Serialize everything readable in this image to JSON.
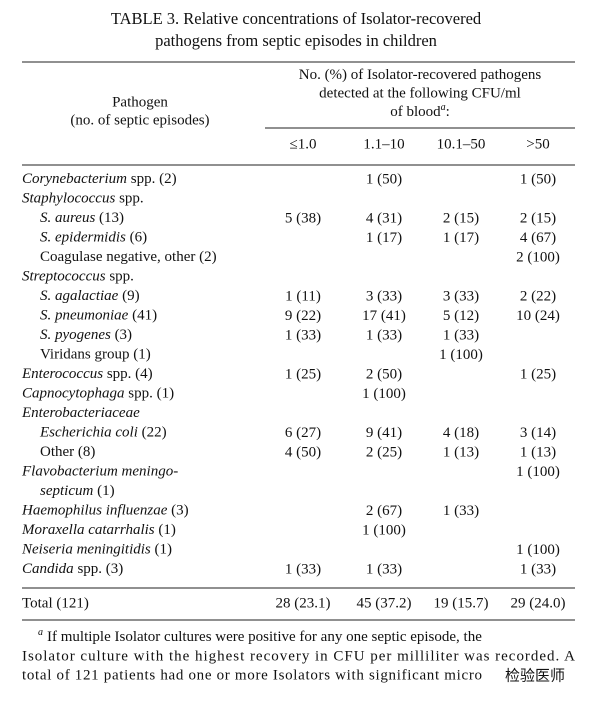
{
  "title": [
    "TABLE 3. Relative concentrations of Isolator-recovered",
    "pathogens from septic episodes in children"
  ],
  "header": {
    "stub": [
      "Pathogen",
      "(no. of septic episodes)"
    ],
    "spanner": [
      [
        {
          "text": "No. (%) of Isolator-recovered pathogens"
        }
      ],
      [
        {
          "text": "detected at the following CFU/ml"
        }
      ],
      [
        {
          "text": "of blood"
        },
        {
          "text": "a",
          "italic": true,
          "sup": true
        },
        {
          "text": ":"
        }
      ]
    ],
    "columns": [
      "≤1.0",
      "1.1–10",
      "10.1–50",
      ">50"
    ]
  },
  "rows": [
    {
      "label": [
        [
          {
            "text": "Corynebacterium",
            "italic": true
          },
          {
            "text": " spp. (2)"
          }
        ]
      ],
      "values": [
        null,
        "1 (50)",
        null,
        "1 (50)"
      ]
    },
    {
      "label": [
        [
          {
            "text": "Staphylococcus",
            "italic": true
          },
          {
            "text": " spp."
          }
        ]
      ]
    },
    {
      "level": 1,
      "label": [
        [
          {
            "text": "S. aureus",
            "italic": true
          },
          {
            "text": " (13)"
          }
        ]
      ],
      "values": [
        "5 (38)",
        "4 (31)",
        "2 (15)",
        "2 (15)"
      ]
    },
    {
      "level": 1,
      "label": [
        [
          {
            "text": "S. epidermidis",
            "italic": true
          },
          {
            "text": " (6)"
          }
        ]
      ],
      "values": [
        null,
        "1 (17)",
        "1 (17)",
        "4 (67)"
      ]
    },
    {
      "level": 1,
      "label": [
        [
          {
            "text": "Coagulase negative, other (2)"
          }
        ]
      ],
      "values": [
        null,
        null,
        null,
        "2 (100)"
      ]
    },
    {
      "label": [
        [
          {
            "text": "Streptococcus",
            "italic": true
          },
          {
            "text": " spp."
          }
        ]
      ]
    },
    {
      "level": 1,
      "label": [
        [
          {
            "text": "S. agalactiae",
            "italic": true
          },
          {
            "text": " (9)"
          }
        ]
      ],
      "values": [
        "1 (11)",
        "3 (33)",
        "3 (33)",
        "2 (22)"
      ]
    },
    {
      "level": 1,
      "label": [
        [
          {
            "text": "S. pneumoniae",
            "italic": true
          },
          {
            "text": " (41)"
          }
        ]
      ],
      "values": [
        "9 (22)",
        "17 (41)",
        "5 (12)",
        "10 (24)"
      ]
    },
    {
      "level": 1,
      "label": [
        [
          {
            "text": "S. pyogenes",
            "italic": true
          },
          {
            "text": " (3)"
          }
        ]
      ],
      "values": [
        "1 (33)",
        "1 (33)",
        "1 (33)",
        null
      ]
    },
    {
      "level": 1,
      "label": [
        [
          {
            "text": "Viridans group (1)"
          }
        ]
      ],
      "values": [
        null,
        null,
        "1 (100)",
        null
      ]
    },
    {
      "label": [
        [
          {
            "text": "Enterococcus",
            "italic": true
          },
          {
            "text": " spp. (4)"
          }
        ]
      ],
      "values": [
        "1 (25)",
        "2 (50)",
        null,
        "1 (25)"
      ]
    },
    {
      "label": [
        [
          {
            "text": "Capnocytophaga",
            "italic": true
          },
          {
            "text": " spp. (1)"
          }
        ]
      ],
      "values": [
        null,
        "1 (100)",
        null,
        null
      ]
    },
    {
      "label": [
        [
          {
            "text": "Enterobacteriaceae",
            "italic": true
          }
        ]
      ]
    },
    {
      "level": 1,
      "label": [
        [
          {
            "text": "Escherichia coli",
            "italic": true
          },
          {
            "text": " (22)"
          }
        ]
      ],
      "values": [
        "6 (27)",
        "9 (41)",
        "4 (18)",
        "3 (14)"
      ]
    },
    {
      "level": 1,
      "label": [
        [
          {
            "text": "Other (8)"
          }
        ]
      ],
      "values": [
        "4 (50)",
        "2 (25)",
        "1 (13)",
        "1 (13)"
      ]
    },
    {
      "label": [
        [
          {
            "text": "Flavobacterium meningo-",
            "italic": true
          }
        ],
        [
          {
            "text": "septicum",
            "italic": true
          },
          {
            "text": " (1)"
          }
        ]
      ],
      "values": [
        null,
        null,
        null,
        "1 (100)"
      ]
    },
    {
      "label": [
        [
          {
            "text": "Haemophilus influenzae",
            "italic": true
          },
          {
            "text": " (3)"
          }
        ]
      ],
      "values": [
        null,
        "2 (67)",
        "1 (33)",
        null
      ]
    },
    {
      "label": [
        [
          {
            "text": "Moraxella catarrhalis",
            "italic": true
          },
          {
            "text": " (1)"
          }
        ]
      ],
      "values": [
        null,
        "1 (100)",
        null,
        null
      ]
    },
    {
      "label": [
        [
          {
            "text": "Neiseria meningitidis",
            "italic": true
          },
          {
            "text": " (1)"
          }
        ]
      ],
      "values": [
        null,
        null,
        null,
        "1 (100)"
      ]
    },
    {
      "label": [
        [
          {
            "text": "Candida",
            "italic": true
          },
          {
            "text": " spp. (3)"
          }
        ]
      ],
      "values": [
        "1 (33)",
        "1 (33)",
        null,
        "1 (33)"
      ]
    }
  ],
  "total": {
    "label": "Total (121)",
    "values": [
      "28 (23.1)",
      "45 (37.2)",
      "19 (15.7)",
      "29 (24.0)"
    ]
  },
  "footnote": {
    "mark": "a",
    "lines": [
      "If multiple Isolator cultures were positive for any one septic episode, the",
      "Isolator culture with the highest recovery in CFU per milliliter was recorded. A",
      "total of 121 patients had one or more Isolators with significant micro"
    ]
  },
  "watermark": "检验医师"
}
